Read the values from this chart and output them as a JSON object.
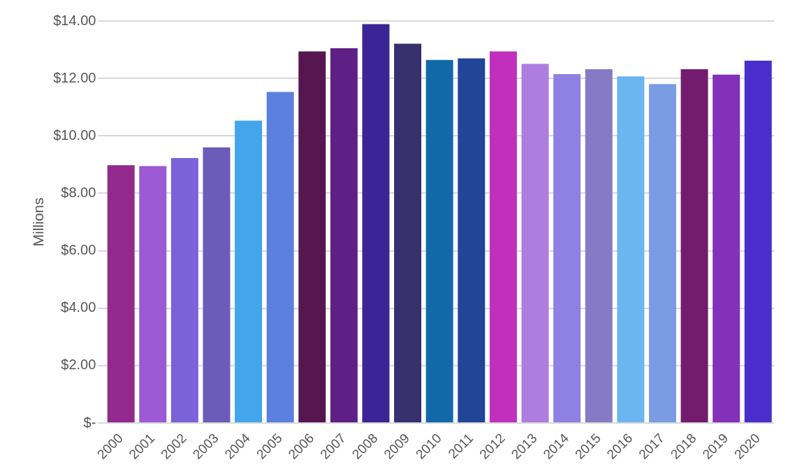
{
  "chart_data": {
    "type": "bar",
    "ylabel": "Millions",
    "categories": [
      "2000",
      "2001",
      "2002",
      "2003",
      "2004",
      "2005",
      "2006",
      "2007",
      "2008",
      "2009",
      "2010",
      "2011",
      "2012",
      "2013",
      "2014",
      "2015",
      "2016",
      "2017",
      "2018",
      "2019",
      "2020"
    ],
    "values": [
      8.98,
      8.95,
      9.23,
      9.6,
      10.53,
      11.53,
      12.94,
      13.05,
      13.89,
      13.21,
      12.64,
      12.7,
      12.94,
      12.51,
      12.15,
      12.32,
      12.07,
      11.8,
      12.32,
      12.13,
      12.62
    ],
    "colors": [
      "#922a8e",
      "#9b59d6",
      "#7b62db",
      "#6a5cb8",
      "#44a5ec",
      "#5c80de",
      "#561650",
      "#5e1f86",
      "#3b2596",
      "#36306e",
      "#1269a8",
      "#214597",
      "#c030bd",
      "#af7de0",
      "#8f80e3",
      "#877ac4",
      "#6bb6f0",
      "#7b9be3",
      "#731b6c",
      "#8530b8",
      "#4a2ecc"
    ],
    "ylim": [
      0,
      14
    ],
    "yticks": [
      {
        "value": 0,
        "label": "$-"
      },
      {
        "value": 2,
        "label": "$2.00"
      },
      {
        "value": 4,
        "label": "$4.00"
      },
      {
        "value": 6,
        "label": "$6.00"
      },
      {
        "value": 8,
        "label": "$8.00"
      },
      {
        "value": 10,
        "label": "$10.00"
      },
      {
        "value": 12,
        "label": "$12.00"
      },
      {
        "value": 14,
        "label": "$14.00"
      }
    ],
    "grid": "y",
    "legend": false
  }
}
